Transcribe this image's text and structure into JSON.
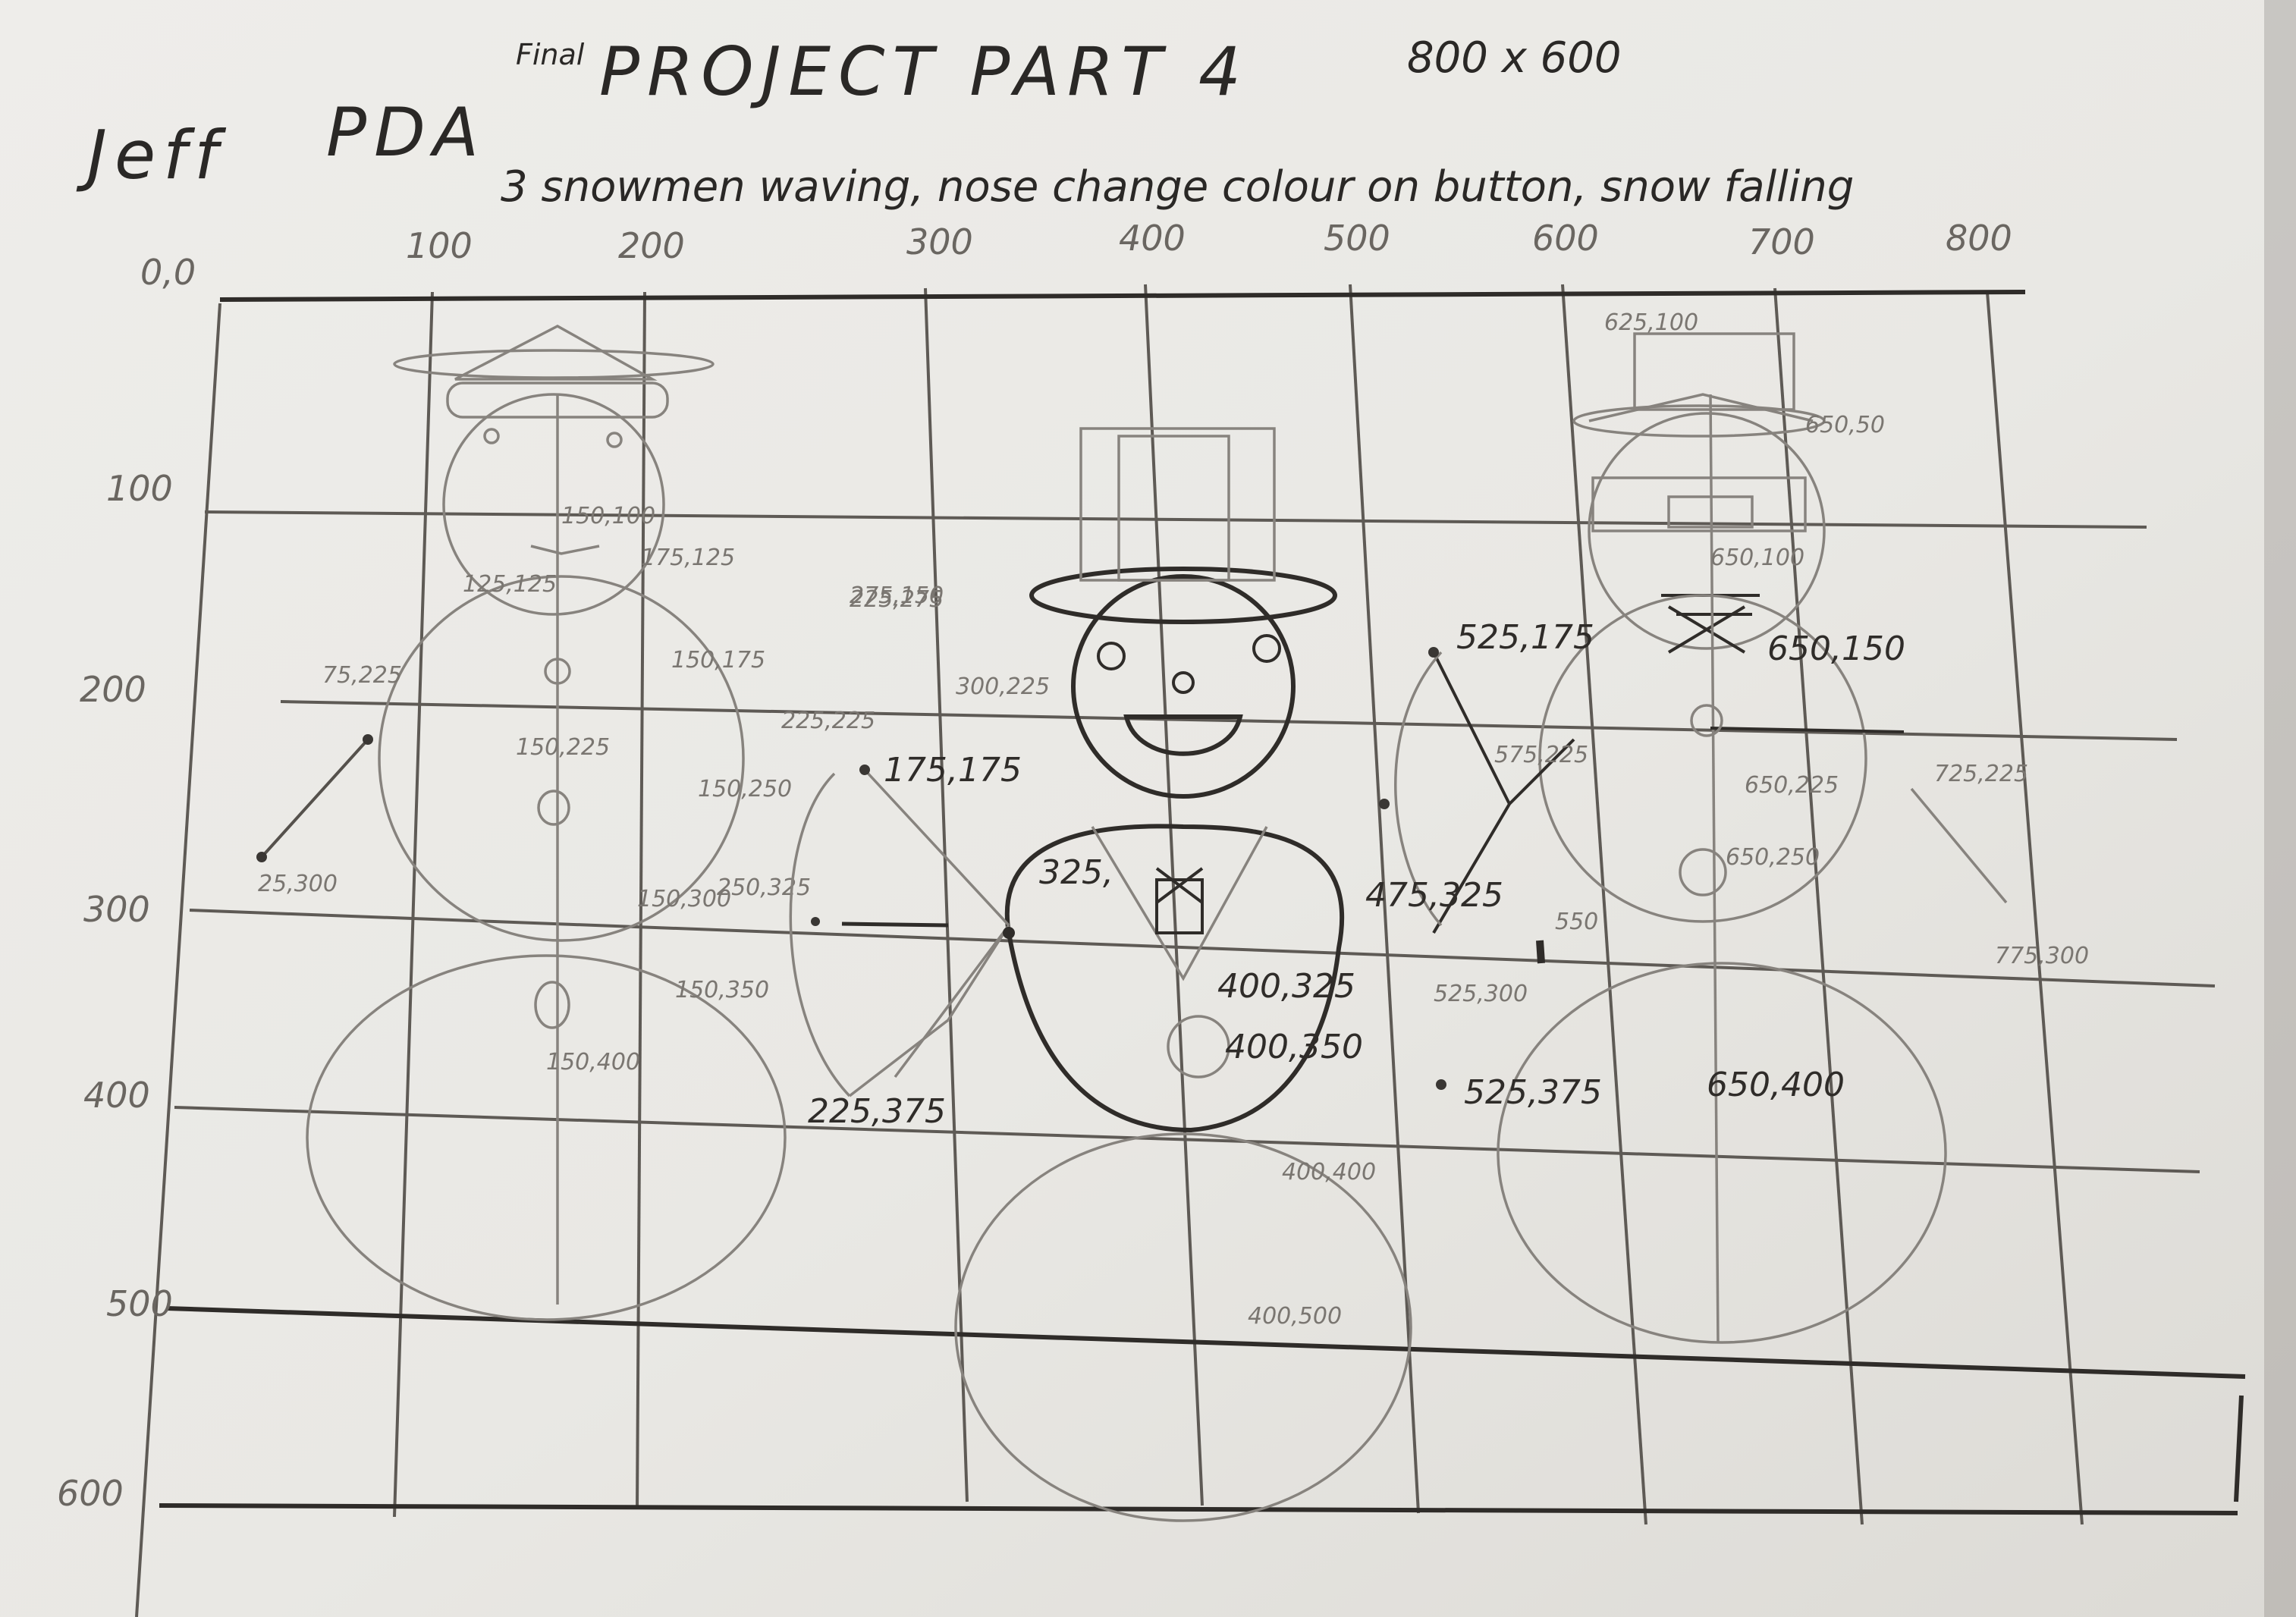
{
  "header": {
    "author": "Jeff",
    "course": "PDA",
    "final_note": "Final",
    "project": "PROJECT PART 4",
    "canvas_size": "800 x 600",
    "description": "3 snowmen waving, nose change colour on button, snow falling"
  },
  "axes": {
    "origin": "0,0",
    "x_ticks": [
      "100",
      "200",
      "300",
      "400",
      "500",
      "600",
      "700",
      "800"
    ],
    "y_ticks": [
      "100",
      "200",
      "300",
      "400",
      "500",
      "600"
    ]
  },
  "annotations": {
    "left_snowman": [
      "125,125",
      "175,125",
      "150,100",
      "150,225",
      "75,225",
      "25,300",
      "150,175",
      "150,250",
      "150,300",
      "250,325",
      "225,275",
      "225,225",
      "150,350",
      "150,400"
    ],
    "middle_snowman": [
      "325,",
      "175,175",
      "275,150",
      "300,225",
      "225,375",
      "400,325",
      "400,350",
      "400,400",
      "400,500"
    ],
    "right_snowman": [
      "625,100",
      "650,50",
      "650,100",
      "650,150",
      "650,250",
      "725,225",
      "650,225",
      "775,300",
      "525,175",
      "575,225",
      "475,325",
      "525,300",
      "525,375",
      "550",
      "650,400"
    ]
  },
  "colors": {
    "paper": "#ecebe8",
    "pencil_dark": "#2f2c29",
    "pencil_light": "#87837e",
    "background": "#5a5450"
  }
}
